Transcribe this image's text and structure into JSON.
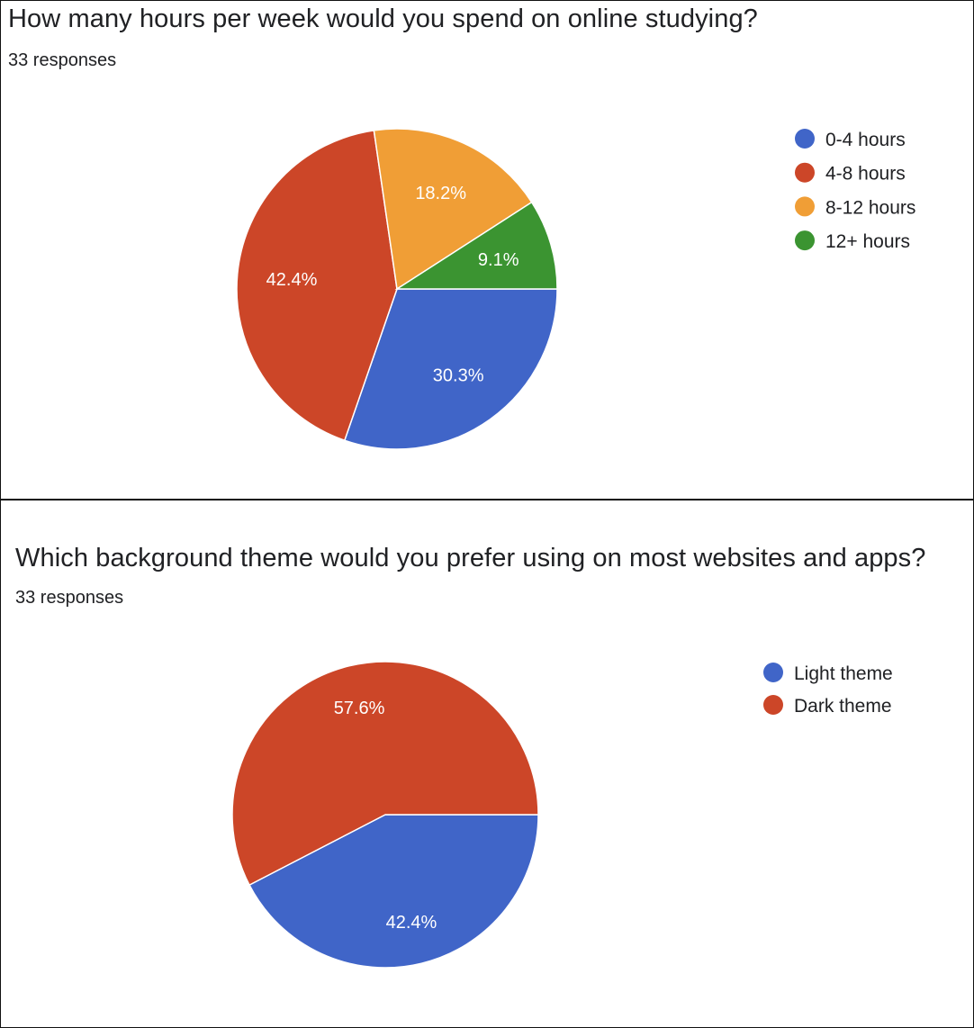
{
  "chart_data": [
    {
      "type": "pie",
      "title": "How many hours per week would you spend on online studying?",
      "subtitle": "33 responses",
      "categories": [
        "0-4 hours",
        "4-8 hours",
        "8-12 hours",
        "12+ hours"
      ],
      "values": [
        30.3,
        42.4,
        18.2,
        9.1
      ],
      "labels": [
        "30.3%",
        "42.4%",
        "18.2%",
        "9.1%"
      ],
      "colors": [
        "#4065c8",
        "#cc4628",
        "#f09e36",
        "#3b9431"
      ],
      "legend_position": "right"
    },
    {
      "type": "pie",
      "title": "Which background theme would you prefer using on most websites and apps?",
      "subtitle": "33 responses",
      "categories": [
        "Light theme",
        "Dark theme"
      ],
      "values": [
        42.4,
        57.6
      ],
      "labels": [
        "42.4%",
        "57.6%"
      ],
      "colors": [
        "#4065c8",
        "#cc4628"
      ],
      "legend_position": "right"
    }
  ]
}
